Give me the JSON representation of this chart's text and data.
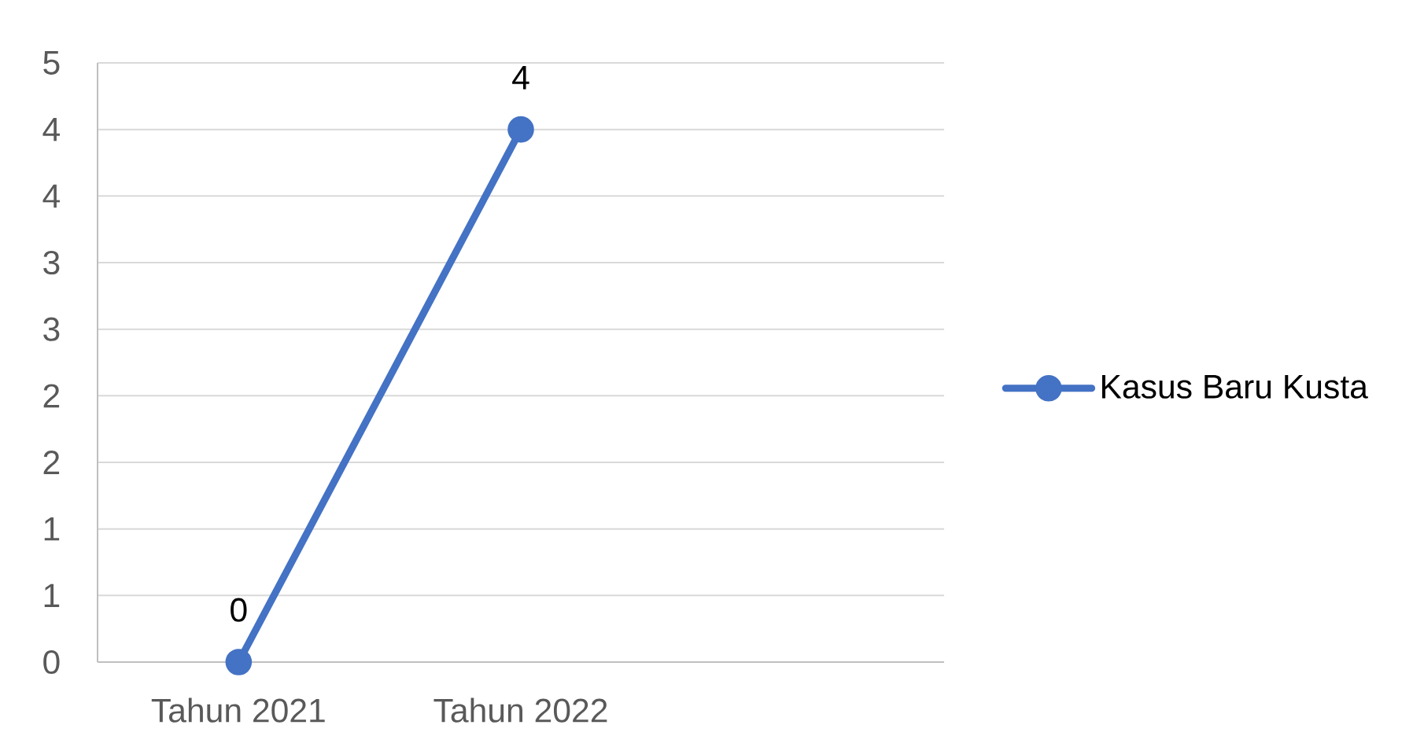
{
  "chart_data": {
    "type": "line",
    "categories": [
      "Tahun 2021",
      "Tahun 2022",
      null
    ],
    "series": [
      {
        "name": "Kasus Baru Kusta",
        "color": "#4472c4",
        "values": [
          0,
          4,
          null
        ]
      }
    ],
    "ylim": [
      0,
      4.5
    ],
    "yticks": [
      0,
      {
        "value": 0.5,
        "label": "1"
      },
      1,
      {
        "value": 1.5,
        "label": "2"
      },
      2,
      {
        "value": 2.5,
        "label": "3"
      },
      3,
      {
        "value": 3.5,
        "label": "4"
      },
      4,
      {
        "value": 4.5,
        "label": "5"
      }
    ],
    "grid": "y",
    "legend": "right",
    "marker": "circle",
    "line_style": "solid",
    "data_labels": true
  }
}
